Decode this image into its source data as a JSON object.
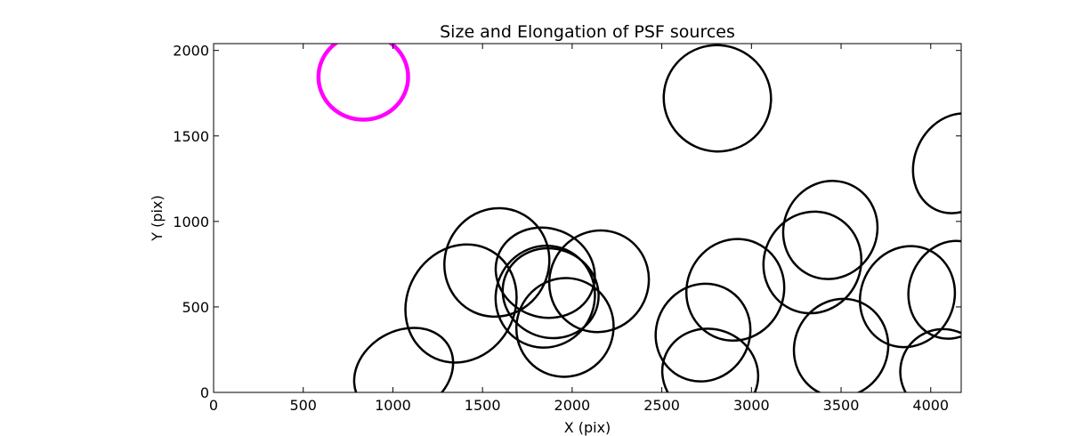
{
  "chart_data": {
    "type": "scatter",
    "title": "Size and Elongation of PSF sources",
    "xlabel": "X (pix)",
    "ylabel": "Y (pix)",
    "xlim": [
      0,
      4170
    ],
    "ylim": [
      0,
      2040
    ],
    "xticks": [
      0,
      500,
      1000,
      1500,
      2000,
      2500,
      3000,
      3500,
      4000
    ],
    "yticks": [
      0,
      500,
      1000,
      1500,
      2000
    ],
    "grid": false,
    "reference_ellipse": {
      "x": 835,
      "y": 1845,
      "rx": 250,
      "ry": 250,
      "angle": 0,
      "color": "#ff00ff"
    },
    "ellipse_color": "#000000",
    "ellipses": [
      {
        "x": 1060,
        "y": 120,
        "rx": 290,
        "ry": 240,
        "angle": -30
      },
      {
        "x": 1380,
        "y": 520,
        "rx": 300,
        "ry": 355,
        "angle": 30
      },
      {
        "x": 1580,
        "y": 760,
        "rx": 290,
        "ry": 320,
        "angle": 25
      },
      {
        "x": 1850,
        "y": 700,
        "rx": 280,
        "ry": 260,
        "angle": 20
      },
      {
        "x": 1880,
        "y": 580,
        "rx": 270,
        "ry": 260,
        "angle": 20
      },
      {
        "x": 1850,
        "y": 560,
        "rx": 275,
        "ry": 300,
        "angle": 25
      },
      {
        "x": 1960,
        "y": 380,
        "rx": 270,
        "ry": 290,
        "angle": 25
      },
      {
        "x": 2150,
        "y": 650,
        "rx": 275,
        "ry": 300,
        "angle": 30
      },
      {
        "x": 2810,
        "y": 1720,
        "rx": 300,
        "ry": 310,
        "angle": 25
      },
      {
        "x": 2730,
        "y": 350,
        "rx": 260,
        "ry": 290,
        "angle": 30
      },
      {
        "x": 2910,
        "y": 600,
        "rx": 270,
        "ry": 300,
        "angle": 25
      },
      {
        "x": 2770,
        "y": 110,
        "rx": 270,
        "ry": 260,
        "angle": 20
      },
      {
        "x": 3340,
        "y": 760,
        "rx": 270,
        "ry": 300,
        "angle": 25
      },
      {
        "x": 3440,
        "y": 950,
        "rx": 260,
        "ry": 290,
        "angle": 25
      },
      {
        "x": 3500,
        "y": 260,
        "rx": 260,
        "ry": 290,
        "angle": 25
      },
      {
        "x": 3870,
        "y": 560,
        "rx": 260,
        "ry": 300,
        "angle": 25
      },
      {
        "x": 4070,
        "y": 120,
        "rx": 240,
        "ry": 250,
        "angle": 20
      },
      {
        "x": 4120,
        "y": 600,
        "rx": 240,
        "ry": 290,
        "angle": 20
      },
      {
        "x": 4150,
        "y": 1340,
        "rx": 240,
        "ry": 300,
        "angle": 25
      }
    ]
  }
}
